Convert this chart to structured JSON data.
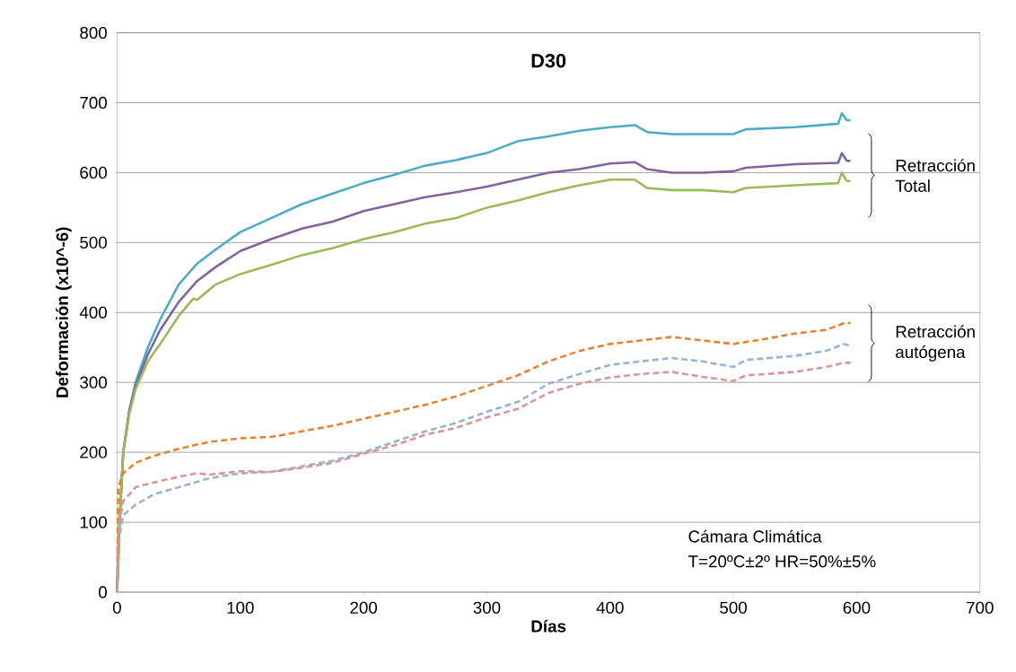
{
  "chart_data": {
    "type": "line",
    "title": "D30",
    "xlabel": "Días",
    "ylabel": "Deformación (x10^-6)",
    "xlim": [
      0,
      700
    ],
    "xticks": [
      0,
      100,
      200,
      300,
      400,
      500,
      600,
      700
    ],
    "ylim": [
      0,
      800
    ],
    "yticks": [
      0,
      100,
      200,
      300,
      400,
      500,
      600,
      700,
      800
    ],
    "grid": "y",
    "marker": "none",
    "series": [
      {
        "color": "#4bacc6",
        "line_style": "solid",
        "x": [
          0,
          2,
          5,
          10,
          15,
          25,
          35,
          50,
          65,
          80,
          100,
          125,
          150,
          175,
          200,
          225,
          250,
          275,
          300,
          325,
          350,
          375,
          400,
          420,
          430,
          450,
          475,
          500,
          510,
          550,
          585,
          588,
          592,
          595
        ],
        "values": [
          0,
          100,
          200,
          260,
          300,
          350,
          390,
          440,
          470,
          490,
          515,
          535,
          555,
          570,
          585,
          597,
          610,
          618,
          628,
          645,
          652,
          660,
          665,
          668,
          658,
          655,
          655,
          655,
          662,
          665,
          670,
          685,
          675,
          675
        ]
      },
      {
        "color": "#8064a2",
        "line_style": "solid",
        "x": [
          0,
          2,
          5,
          10,
          15,
          25,
          35,
          50,
          65,
          80,
          100,
          125,
          150,
          175,
          200,
          225,
          250,
          275,
          300,
          325,
          350,
          375,
          400,
          420,
          430,
          450,
          475,
          500,
          510,
          550,
          585,
          588,
          592,
          595
        ],
        "values": [
          0,
          100,
          200,
          260,
          295,
          340,
          375,
          415,
          445,
          465,
          488,
          505,
          520,
          530,
          545,
          555,
          565,
          572,
          580,
          590,
          600,
          605,
          613,
          615,
          605,
          600,
          600,
          602,
          607,
          612,
          614,
          628,
          617,
          617
        ]
      },
      {
        "color": "#9bbb59",
        "line_style": "solid",
        "x": [
          0,
          2,
          5,
          10,
          15,
          25,
          35,
          50,
          62,
          65,
          80,
          100,
          125,
          150,
          175,
          200,
          225,
          250,
          275,
          300,
          325,
          350,
          375,
          400,
          420,
          430,
          450,
          475,
          500,
          510,
          550,
          585,
          588,
          592,
          595
        ],
        "values": [
          0,
          100,
          200,
          255,
          290,
          330,
          355,
          395,
          420,
          418,
          440,
          455,
          468,
          482,
          492,
          505,
          515,
          527,
          535,
          550,
          560,
          572,
          582,
          590,
          590,
          578,
          575,
          575,
          572,
          578,
          582,
          585,
          600,
          588,
          588
        ]
      },
      {
        "color": "#e8822e",
        "line_style": "dashed",
        "x": [
          0,
          1,
          5,
          15,
          30,
          50,
          75,
          100,
          125,
          150,
          175,
          200,
          225,
          250,
          275,
          300,
          325,
          350,
          375,
          400,
          425,
          450,
          475,
          500,
          525,
          550,
          575,
          590,
          595
        ],
        "values": [
          0,
          150,
          170,
          185,
          195,
          205,
          215,
          220,
          222,
          230,
          238,
          248,
          258,
          268,
          280,
          295,
          310,
          330,
          345,
          355,
          360,
          365,
          360,
          355,
          362,
          370,
          375,
          385,
          385
        ]
      },
      {
        "color": "#95b3d7",
        "line_style": "dashed",
        "x": [
          0,
          2,
          5,
          15,
          30,
          50,
          75,
          100,
          125,
          150,
          175,
          200,
          225,
          250,
          275,
          300,
          325,
          350,
          375,
          400,
          425,
          450,
          475,
          500,
          510,
          550,
          575,
          590,
          595
        ],
        "values": [
          0,
          80,
          110,
          125,
          140,
          150,
          163,
          170,
          172,
          180,
          188,
          200,
          215,
          230,
          242,
          258,
          272,
          298,
          312,
          325,
          330,
          335,
          330,
          322,
          332,
          338,
          345,
          355,
          352
        ]
      },
      {
        "color": "#d99694",
        "line_style": "dashed",
        "x": [
          0,
          2,
          5,
          15,
          30,
          50,
          65,
          75,
          100,
          125,
          150,
          175,
          200,
          225,
          250,
          275,
          300,
          325,
          350,
          375,
          400,
          425,
          450,
          475,
          500,
          510,
          550,
          575,
          590,
          595
        ],
        "values": [
          0,
          100,
          130,
          150,
          157,
          165,
          170,
          168,
          173,
          172,
          178,
          185,
          198,
          210,
          225,
          235,
          250,
          262,
          285,
          298,
          307,
          312,
          315,
          308,
          302,
          310,
          315,
          322,
          328,
          328
        ]
      }
    ],
    "annotations": [
      "Retracción Total",
      "Retracción autógena",
      "Cámara Climática",
      "T=20ºC±2º  HR=50%±5%"
    ]
  }
}
